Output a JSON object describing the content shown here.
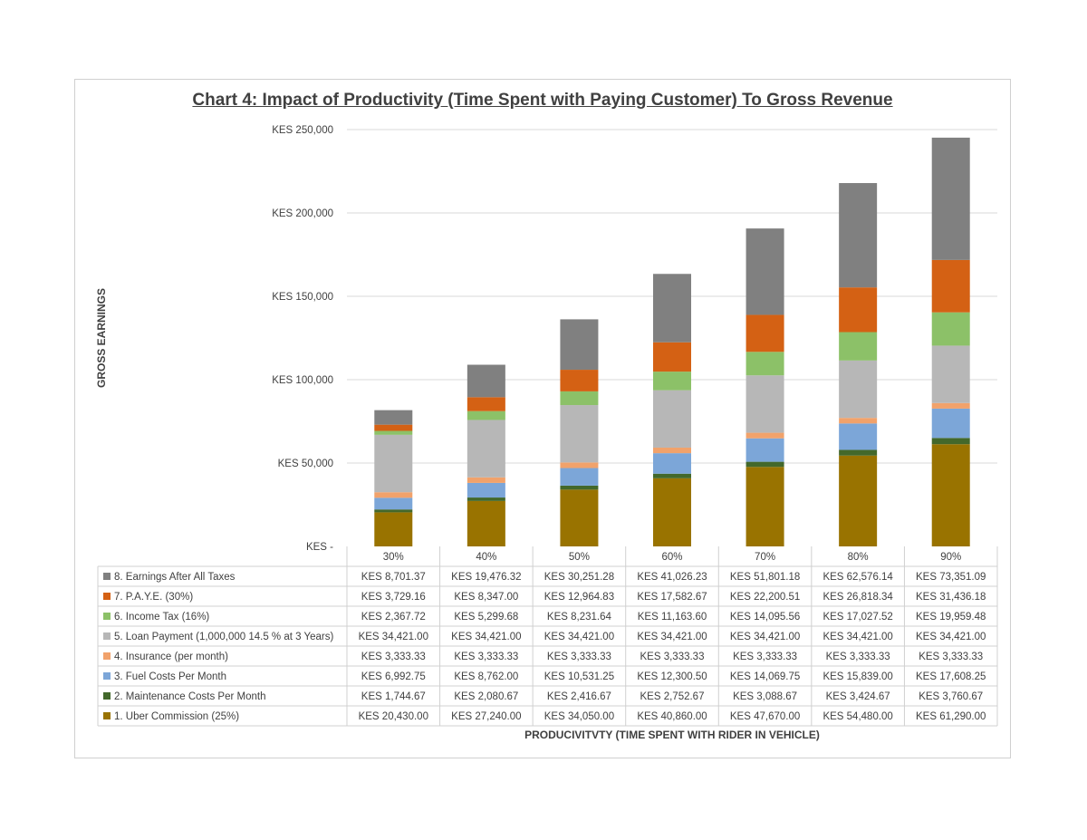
{
  "chart_data": {
    "type": "bar",
    "stacked": true,
    "title": "Chart 4: Impact of Productivity (Time Spent with Paying Customer) To Gross Revenue",
    "xlabel": "PRODUCIVITVTY (TIME SPENT WITH RIDER IN VEHICLE)",
    "ylabel": "GROSS EARNINGS",
    "ylim": [
      0,
      250000
    ],
    "yticks": [
      0,
      50000,
      100000,
      150000,
      200000,
      250000
    ],
    "ytick_labels": [
      "KES -",
      "KES 50,000",
      "KES 100,000",
      "KES 150,000",
      "KES 200,000",
      "KES 250,000"
    ],
    "grid": true,
    "legend": "data-table-below",
    "categories": [
      "30%",
      "40%",
      "50%",
      "60%",
      "70%",
      "80%",
      "90%"
    ],
    "series": [
      {
        "name": "1. Uber Commission (25%)",
        "color": "#997300",
        "values": [
          20430.0,
          27240.0,
          34050.0,
          40860.0,
          47670.0,
          54480.0,
          61290.0
        ],
        "labels": [
          "KES 20,430.00",
          "KES 27,240.00",
          "KES 34,050.00",
          "KES 40,860.00",
          "KES 47,670.00",
          "KES 54,480.00",
          "KES 61,290.00"
        ]
      },
      {
        "name": "2. Maintenance Costs Per Month",
        "color": "#43682b",
        "values": [
          1744.67,
          2080.67,
          2416.67,
          2752.67,
          3088.67,
          3424.67,
          3760.67
        ],
        "labels": [
          "KES 1,744.67",
          "KES 2,080.67",
          "KES 2,416.67",
          "KES 2,752.67",
          "KES 3,088.67",
          "KES 3,424.67",
          "KES 3,760.67"
        ]
      },
      {
        "name": "3. Fuel Costs Per Month",
        "color": "#7ca6d8",
        "values": [
          6992.75,
          8762.0,
          10531.25,
          12300.5,
          14069.75,
          15839.0,
          17608.25
        ],
        "labels": [
          "KES 6,992.75",
          "KES 8,762.00",
          "KES 10,531.25",
          "KES 12,300.50",
          "KES 14,069.75",
          "KES 15,839.00",
          "KES 17,608.25"
        ]
      },
      {
        "name": "4. Insurance (per month)",
        "color": "#f1a26b",
        "values": [
          3333.33,
          3333.33,
          3333.33,
          3333.33,
          3333.33,
          3333.33,
          3333.33
        ],
        "labels": [
          "KES 3,333.33",
          "KES 3,333.33",
          "KES 3,333.33",
          "KES 3,333.33",
          "KES 3,333.33",
          "KES 3,333.33",
          "KES 3,333.33"
        ]
      },
      {
        "name": "5. Loan Payment (1,000,000 14.5 % at 3 Years)",
        "color": "#b7b7b7",
        "values": [
          34421.0,
          34421.0,
          34421.0,
          34421.0,
          34421.0,
          34421.0,
          34421.0
        ],
        "labels": [
          "KES 34,421.00",
          "KES 34,421.00",
          "KES 34,421.00",
          "KES 34,421.00",
          "KES 34,421.00",
          "KES 34,421.00",
          "KES 34,421.00"
        ]
      },
      {
        "name": "6. Income Tax (16%)",
        "color": "#8cc168",
        "values": [
          2367.72,
          5299.68,
          8231.64,
          11163.6,
          14095.56,
          17027.52,
          19959.48
        ],
        "labels": [
          "KES 2,367.72",
          "KES 5,299.68",
          "KES 8,231.64",
          "KES 11,163.60",
          "KES 14,095.56",
          "KES 17,027.52",
          "KES 19,959.48"
        ]
      },
      {
        "name": "7. P.A.Y.E. (30%)",
        "color": "#d46114",
        "values": [
          3729.16,
          8347.0,
          12964.83,
          17582.67,
          22200.51,
          26818.34,
          31436.18
        ],
        "labels": [
          "KES 3,729.16",
          "KES 8,347.00",
          "KES 12,964.83",
          "KES 17,582.67",
          "KES 22,200.51",
          "KES 26,818.34",
          "KES 31,436.18"
        ]
      },
      {
        "name": "8. Earnings After All Taxes",
        "color": "#808080",
        "values": [
          8701.37,
          19476.32,
          30251.28,
          41026.23,
          51801.18,
          62576.14,
          73351.09
        ],
        "labels": [
          "KES 8,701.37",
          "KES 19,476.32",
          "KES 30,251.28",
          "KES 41,026.23",
          "KES 51,801.18",
          "KES 62,576.14",
          "KES 73,351.09"
        ]
      }
    ]
  }
}
